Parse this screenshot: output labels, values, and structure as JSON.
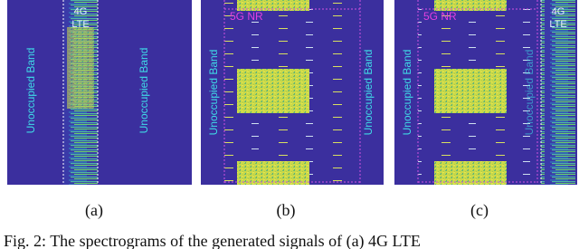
{
  "figure": {
    "panels": [
      {
        "label": "(a)",
        "lte": [
          "4G",
          "LTE"
        ],
        "unoccupied": [
          "Unoccupied Band",
          "Unoccupied Band"
        ]
      },
      {
        "label": "(b)",
        "nr": "5G NR",
        "unoccupied": [
          "Unoccupied Band",
          "Unoccupied Band"
        ]
      },
      {
        "label": "(c)",
        "nr": "5G NR",
        "lte": [
          "4G",
          "LTE"
        ],
        "unoccupied": [
          "Unoccupied Band",
          "Unoccupied Band"
        ]
      }
    ],
    "caption": "Fig. 2: The spectrograms of the generated signals of (a) 4G LTE"
  }
}
